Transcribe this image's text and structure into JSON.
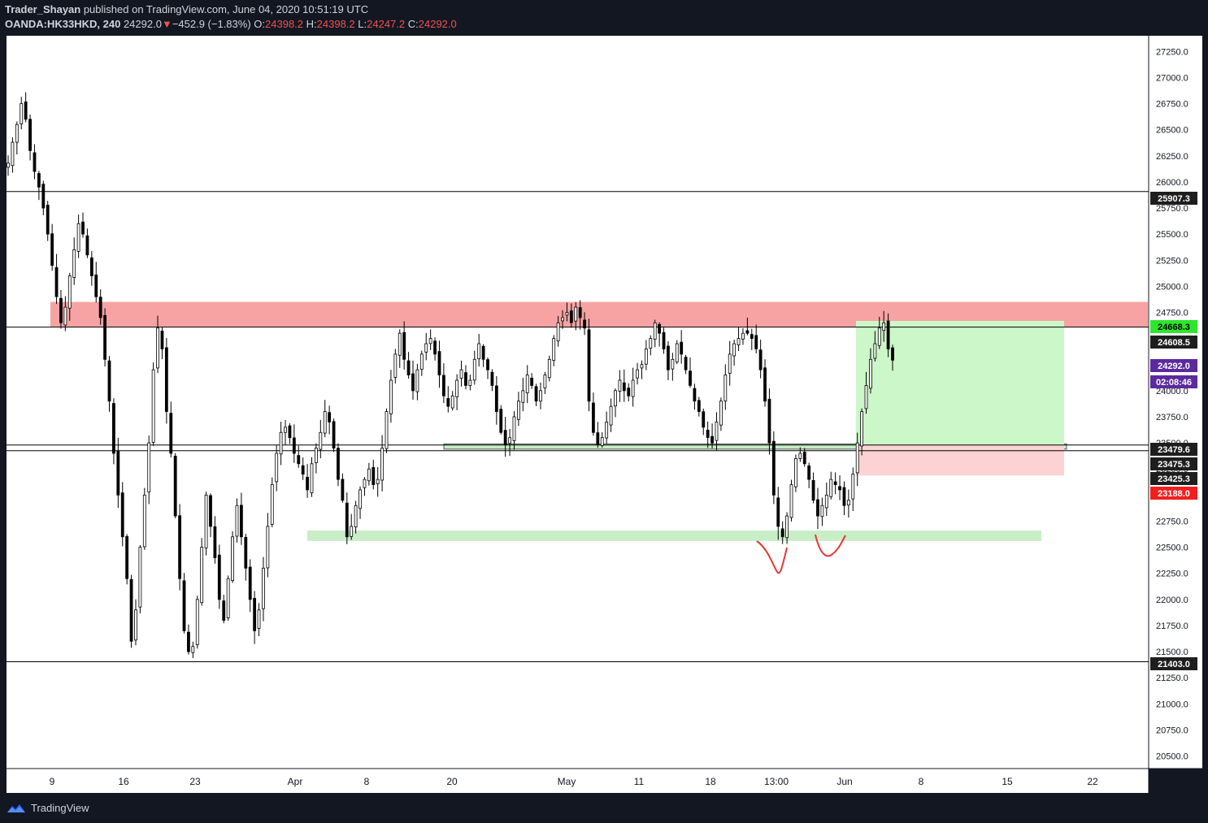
{
  "header": {
    "author": "Trader_Shayan",
    "published_text": " published on TradingView.com, June 04, 2020 10:51:19 UTC",
    "symbol": "OANDA:HK33HKD, 240",
    "last": "24292.0",
    "change": "−452.9 (−1.83%)",
    "o_label": "O:",
    "o_value": "24398.2",
    "h_label": "H:",
    "h_value": "24398.2",
    "l_label": "L:",
    "l_value": "24247.2",
    "c_label": "C:",
    "c_value": "24292.0"
  },
  "footer": {
    "brand": "TradingView"
  },
  "colors": {
    "background": "#ffffff",
    "frame": "#131722",
    "candle": "#000000",
    "resistance_zone": "#f8a3a3",
    "support_zone": "#c8eec8",
    "target_zone": "#ccf7c8",
    "stop_zone": "#fcd2d2",
    "annotation": "#e53935",
    "badge_dark": "#1e1e1e",
    "badge_green": "#2ee62e",
    "badge_purple": "#5b2a9e",
    "badge_red": "#f21f1f"
  },
  "chart_data": {
    "type": "candlestick",
    "symbol": "OANDA:HK33HKD",
    "timeframe": "240",
    "ylim": [
      20380,
      27400
    ],
    "y_ticks": [
      20500,
      20750,
      21000,
      21250,
      21500,
      21750,
      22000,
      22250,
      22500,
      22750,
      23000,
      23250,
      23500,
      23750,
      24000,
      24250,
      24500,
      24750,
      25000,
      25250,
      25500,
      25750,
      26000,
      26250,
      26500,
      26750,
      27000,
      27250
    ],
    "x_ticks": [
      "9",
      "16",
      "23",
      "Apr",
      "8",
      "20",
      "May",
      "11",
      "18",
      "13:00",
      "Jun",
      "8",
      "15",
      "22"
    ],
    "close_path": [
      [
        26180,
        26380,
        26550,
        26750,
        26600,
        26300,
        26100,
        25950,
        25750,
        25500,
        25200,
        24900,
        24650,
        24800,
        25100,
        25350,
        25600,
        25500,
        25300,
        25100,
        24900
      ],
      [
        24700,
        24300,
        23900,
        23400,
        23000,
        22600,
        22200,
        21600,
        21900,
        22500,
        23000,
        23500,
        24200,
        24600,
        24400,
        23800,
        23400,
        22800,
        22200,
        21700,
        21500
      ],
      [
        21550,
        22000,
        22500,
        23000,
        22700,
        22400,
        22000,
        21800,
        22200,
        22600,
        22900,
        22600,
        22300,
        22000,
        21700,
        21900,
        22300,
        22700,
        23100,
        23400,
        23600
      ],
      [
        23650,
        23550,
        23400,
        23300,
        23200,
        23050,
        23300,
        23450,
        23600,
        23800,
        23700,
        23450,
        23150,
        22950,
        22600,
        22700,
        22900,
        23050,
        23150,
        23250,
        23100
      ],
      [
        23150,
        23450,
        23800,
        24100,
        24350,
        24550,
        24300,
        24150,
        24000,
        24200,
        24350,
        24450,
        24500,
        24350,
        24150,
        23950,
        23850,
        23950,
        24100,
        24200,
        24050
      ],
      [
        24100,
        24300,
        24450,
        24300,
        24200,
        24050,
        23800,
        23600,
        23480,
        23550,
        23750,
        23900,
        24000,
        24150,
        24050,
        23900,
        24000,
        24150,
        24300,
        24500,
        24650
      ],
      [
        24700,
        24750,
        24650,
        24800,
        24700,
        24600,
        23900,
        23600,
        23480,
        23550,
        23700,
        23850,
        24000,
        24100,
        24000,
        23950,
        24100,
        24200,
        24250,
        24400,
        24500
      ],
      [
        24650,
        24550,
        24400,
        24200,
        24300,
        24450,
        24350,
        24200,
        24050,
        23900,
        23800,
        23650,
        23550,
        23500,
        23700,
        23900,
        24150,
        24350,
        24450,
        24500,
        24550
      ],
      [
        24550,
        24500,
        24400,
        24200,
        23900,
        23500,
        23000,
        22700,
        22600,
        22800,
        23100,
        23350,
        23400,
        23300,
        23150,
        22950,
        22800,
        22900,
        23000,
        23150,
        23100
      ],
      [
        23050,
        22900,
        22950,
        23200,
        23500,
        23800,
        24050,
        24300,
        24450,
        24600,
        24650,
        24400,
        24292
      ]
    ],
    "horizontal_levels": [
      25907.3,
      24608.5,
      23479.6,
      23425.3,
      21403.0
    ],
    "zones": {
      "resistance": [
        24608.5,
        24850
      ],
      "support_upper": [
        23440,
        23490
      ],
      "support_lower": [
        22560,
        22660
      ]
    },
    "position": {
      "type": "long",
      "entry": 23479.6,
      "target": 24668.3,
      "stop": 23188.0
    },
    "price_labels": [
      "25907.3",
      "24668.3",
      "24608.5",
      "24292.0",
      "02:08:46",
      "23479.6",
      "23475.3",
      "23425.3",
      "23188.0",
      "21403.0"
    ]
  }
}
